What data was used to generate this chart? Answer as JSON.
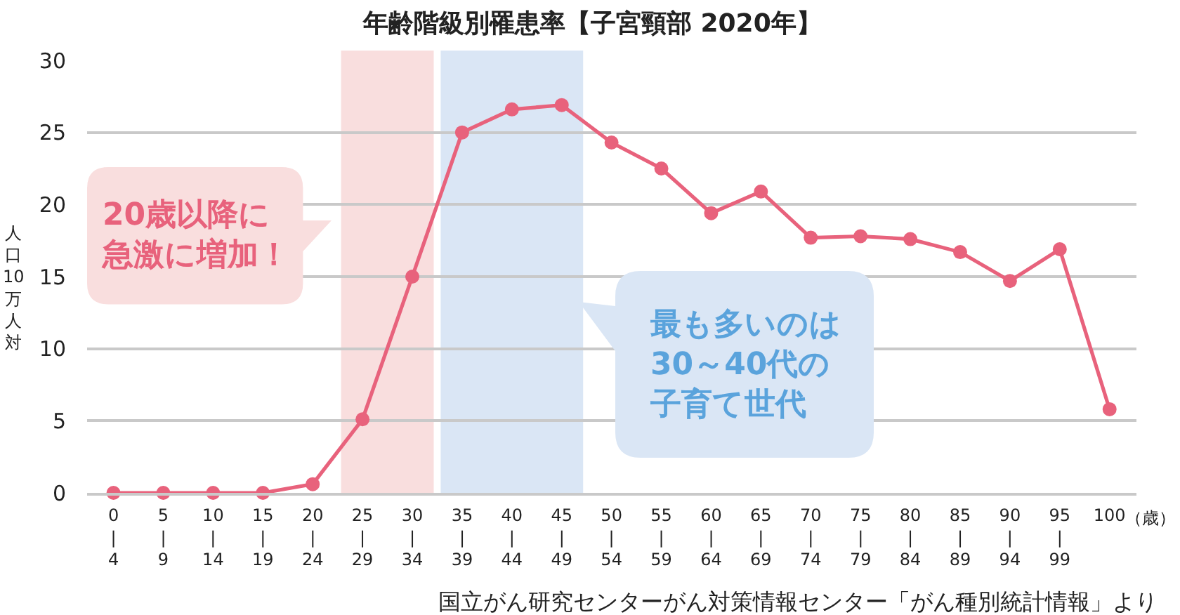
{
  "chart_data": {
    "type": "line",
    "title": "年齢階級別罹患率【子宮頸部 2020年】",
    "xlabel": "（歳）",
    "ylabel": "人口10万人対",
    "categories": [
      "0\n|\n4",
      "5\n|\n9",
      "10\n|\n14",
      "15\n|\n19",
      "20\n|\n24",
      "25\n|\n29",
      "30\n|\n34",
      "35\n|\n39",
      "40\n|\n44",
      "45\n|\n49",
      "50\n|\n54",
      "55\n|\n59",
      "60\n|\n64",
      "65\n|\n69",
      "70\n|\n74",
      "75\n|\n79",
      "80\n|\n84",
      "85\n|\n89",
      "90\n|\n94",
      "95\n|\n99",
      "100"
    ],
    "values": [
      0,
      0,
      0,
      0,
      0.6,
      5.1,
      15.0,
      25.0,
      26.6,
      26.9,
      24.3,
      22.5,
      19.4,
      20.9,
      17.7,
      17.8,
      17.6,
      16.7,
      14.7,
      16.9,
      5.8
    ],
    "color": "#e8627c",
    "marker": "circle",
    "line_style": "solid",
    "ylim": [
      0,
      30
    ],
    "yticks": [
      0,
      5,
      10,
      15,
      20,
      25,
      30
    ],
    "grid": "y",
    "bands": [
      {
        "axis": "x",
        "from": "25\n|\n29",
        "to": "30\n|\n34",
        "label": "20歳以降に急激に増加！",
        "color": "#f9dede"
      },
      {
        "axis": "x",
        "from": "35\n|\n39",
        "to": "45\n|\n49",
        "label": "最も多いのは30～40代の子育て世代",
        "color": "#dae6f5"
      }
    ],
    "annotations": [
      "国立がん研究センターがん対策情報センター「がん種別統計情報」より"
    ]
  }
}
